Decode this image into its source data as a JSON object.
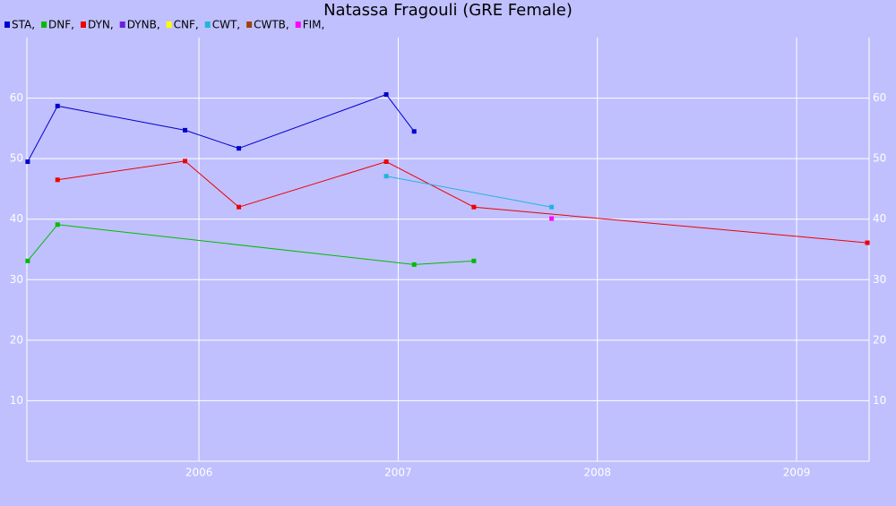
{
  "chart_data": {
    "type": "line",
    "title": "Natassa Fragouli (GRE Female)",
    "xlim": [
      2005.136,
      2009.364
    ],
    "xticks": [
      2006,
      2007,
      2008,
      2009
    ],
    "ylim": [
      0,
      70
    ],
    "yticks": [
      10,
      20,
      30,
      40,
      50,
      60
    ],
    "grid": true,
    "series": [
      {
        "name": "STA,",
        "color": "#0000cc",
        "x": [
          2005.14,
          2005.29,
          2005.93,
          2006.2,
          2006.94,
          2007.08
        ],
        "values": [
          49.5,
          58.7,
          54.7,
          51.7,
          60.6,
          54.5
        ]
      },
      {
        "name": "DNF,",
        "color": "#00bb00",
        "x": [
          2005.14,
          2005.29,
          2007.08,
          2007.38
        ],
        "values": [
          33.1,
          39.1,
          32.5,
          33.1
        ]
      },
      {
        "name": "DYN,",
        "color": "#ee0000",
        "x": [
          2005.29,
          2005.93,
          2006.2,
          2006.94,
          2007.38,
          2009.355
        ],
        "values": [
          46.5,
          49.6,
          42.0,
          49.5,
          42.0,
          36.1
        ]
      },
      {
        "name": "DYNB,",
        "color": "#6622dd",
        "x": [],
        "values": []
      },
      {
        "name": "CNF,",
        "color": "#ffff00",
        "x": [],
        "values": []
      },
      {
        "name": "CWT,",
        "color": "#22b4dd",
        "x": [
          2006.94,
          2007.77
        ],
        "values": [
          47.1,
          42.0
        ]
      },
      {
        "name": "CWTB,",
        "color": "#a04010",
        "x": [],
        "values": []
      },
      {
        "name": "FIM,",
        "color": "#ff00ff",
        "x": [
          2007.77
        ],
        "values": [
          40.1
        ]
      }
    ]
  }
}
